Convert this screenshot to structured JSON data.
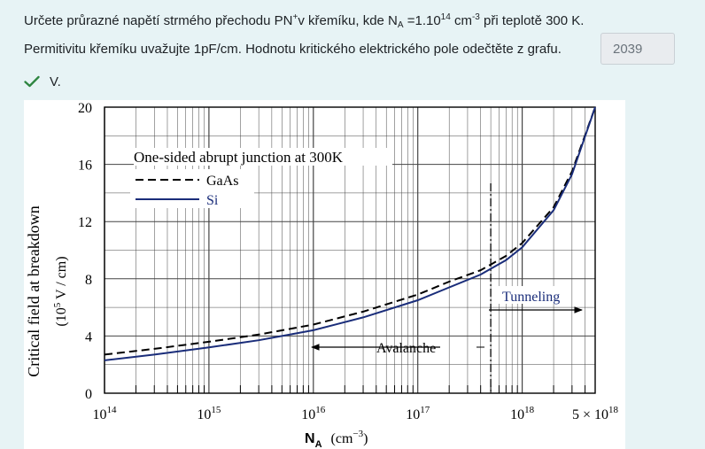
{
  "question": {
    "line1": {
      "part1": "Určete průrazné napětí strmého přechodu PN",
      "sup_plus": "+",
      "part2": "v křemíku, kde N",
      "sub_A": "A",
      "part3": " =1.10",
      "exp14": "14",
      "part4": " cm",
      "exp_neg3": "-3",
      "part5": " při teplotě 300 K."
    },
    "line2": "Permitivitu křemíku uvažujte 1pF/cm. Hodnotu kritického elektrického pole odečtěte z grafu.",
    "answer_value": "2039",
    "result_text": "V."
  },
  "colors": {
    "page_bg": "#e7f3f5",
    "correct_check": "#2e8540",
    "si_curve": "#1a2d7a",
    "gaas_curve": "#000000"
  },
  "chart_data": {
    "type": "line",
    "title": "One-sided abrupt junction at 300K",
    "xlabel": "N",
    "xlabel_sub": "A",
    "xlabel_unit": "(cm",
    "xlabel_unit_exp": "−3",
    "xlabel_unit_close": ")",
    "ylabel": "Critical field at breakdown",
    "ylabel_unit_pre": "(10",
    "ylabel_unit_exp": "5",
    "ylabel_unit_post": " V / cm)",
    "x_scale": "log",
    "xlim": [
      100000000000000.0,
      5e+18
    ],
    "ylim": [
      0,
      20
    ],
    "grid": true,
    "legend_position": "upper-left",
    "y_ticks": [
      "0",
      "4",
      "8",
      "12",
      "16",
      "20"
    ],
    "x_ticks": [
      {
        "base": "10",
        "exp": "14",
        "value": 100000000000000.0
      },
      {
        "base": "10",
        "exp": "15",
        "value": 1000000000000000.0
      },
      {
        "base": "10",
        "exp": "16",
        "value": 1e+16
      },
      {
        "base": "10",
        "exp": "17",
        "value": 1e+17
      },
      {
        "base": "10",
        "exp": "18",
        "value": 1e+18
      },
      {
        "base": "5 × 10",
        "exp": "18",
        "value": 5e+18
      }
    ],
    "series": [
      {
        "name": "GaAs",
        "style": "dashed",
        "x": [
          100000000000000.0,
          300000000000000.0,
          1000000000000000.0,
          3000000000000000.0,
          1e+16,
          3e+16,
          1e+17,
          2e+17,
          4e+17,
          5e+17,
          7e+17,
          1e+18,
          2e+18,
          3e+18,
          5e+18
        ],
        "y": [
          2.7,
          3.1,
          3.6,
          4.1,
          4.8,
          5.7,
          6.9,
          7.8,
          8.6,
          9.0,
          9.6,
          10.5,
          13.0,
          15.5,
          20.0
        ]
      },
      {
        "name": "Si",
        "style": "solid",
        "x": [
          100000000000000.0,
          300000000000000.0,
          1000000000000000.0,
          3000000000000000.0,
          1e+16,
          3e+16,
          1e+17,
          2e+17,
          4e+17,
          5e+17,
          7e+17,
          1e+18,
          2e+18,
          3e+18,
          5e+18
        ],
        "y": [
          2.3,
          2.7,
          3.2,
          3.7,
          4.4,
          5.3,
          6.5,
          7.4,
          8.3,
          8.7,
          9.3,
          10.2,
          12.8,
          15.3,
          20.0
        ]
      }
    ],
    "boundary_x": 5e+17,
    "annotations": {
      "avalanche": "Avalanche",
      "tunneling": "Tunneling"
    }
  }
}
